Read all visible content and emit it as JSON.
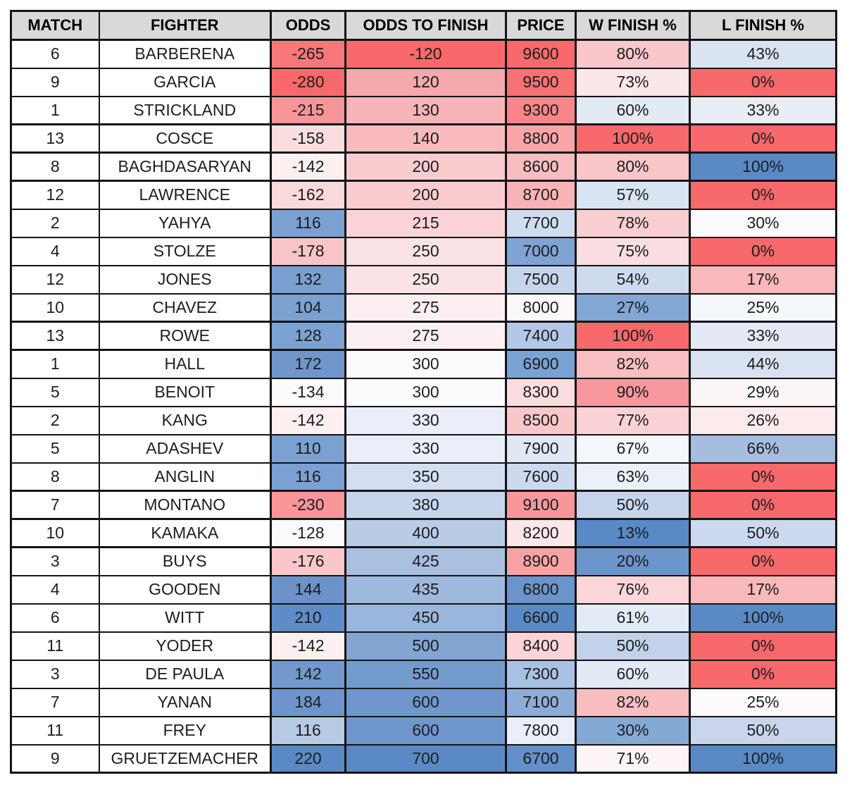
{
  "colors": {
    "header_bg": "#D9D9D9",
    "border": "#141414",
    "text": "#1D1D1D",
    "scale_red": "#F8696B",
    "scale_mid": "#FCFCFF",
    "scale_blue": "#5A8AC6"
  },
  "table": {
    "columns": [
      "MATCH",
      "FIGHTER",
      "ODDS",
      "ODDS TO FINISH",
      "PRICE",
      "W FINISH %",
      "L FINISH %"
    ],
    "rows": [
      {
        "match": "6",
        "fighter": "BARBERENA",
        "odds": "-265",
        "odds_to_finish": "-120",
        "price": "9600",
        "w_finish": "80%",
        "l_finish": "43%",
        "thick_bottom": false,
        "colors": {
          "odds": "#F87779",
          "odds_to_finish": "#F8696B",
          "price": "#F8696B",
          "w_finish": "#F9C6C9",
          "l_finish": "#D9E3F2"
        }
      },
      {
        "match": "9",
        "fighter": "GARCIA",
        "odds": "-280",
        "odds_to_finish": "120",
        "price": "9500",
        "w_finish": "73%",
        "l_finish": "0%",
        "thick_bottom": false,
        "colors": {
          "odds": "#F8696B",
          "odds_to_finish": "#F7A8AC",
          "price": "#F87173",
          "w_finish": "#FBE7EA",
          "l_finish": "#F8696B"
        }
      },
      {
        "match": "1",
        "fighter": "STRICKLAND",
        "odds": "-215",
        "odds_to_finish": "130",
        "price": "9300",
        "w_finish": "60%",
        "l_finish": "33%",
        "thick_bottom": true,
        "colors": {
          "odds": "#F89598",
          "odds_to_finish": "#F8B4B7",
          "price": "#F88689",
          "w_finish": "#E2EAF4",
          "l_finish": "#E8EDF6"
        }
      },
      {
        "match": "13",
        "fighter": "COSCE",
        "odds": "-158",
        "odds_to_finish": "140",
        "price": "8800",
        "w_finish": "100%",
        "l_finish": "0%",
        "thick_bottom": true,
        "colors": {
          "odds": "#FADEDF",
          "odds_to_finish": "#F8BABD",
          "price": "#F9A5A8",
          "w_finish": "#F8696B",
          "l_finish": "#F8696B"
        }
      },
      {
        "match": "8",
        "fighter": "BAGHDASARYAN",
        "odds": "-142",
        "odds_to_finish": "200",
        "price": "8600",
        "w_finish": "80%",
        "l_finish": "100%",
        "thick_bottom": true,
        "colors": {
          "odds": "#FCEFF0",
          "odds_to_finish": "#FACCCF",
          "price": "#F9BCBF",
          "w_finish": "#F9C6C9",
          "l_finish": "#5A8AC6"
        }
      },
      {
        "match": "12",
        "fighter": "LAWRENCE",
        "odds": "-162",
        "odds_to_finish": "200",
        "price": "8700",
        "w_finish": "57%",
        "l_finish": "0%",
        "thick_bottom": false,
        "colors": {
          "odds": "#FAD9DB",
          "odds_to_finish": "#FACCCF",
          "price": "#F9B3B6",
          "w_finish": "#D9E4F2",
          "l_finish": "#F8696B"
        }
      },
      {
        "match": "2",
        "fighter": "YAHYA",
        "odds": "116",
        "odds_to_finish": "215",
        "price": "7700",
        "w_finish": "78%",
        "l_finish": "30%",
        "thick_bottom": false,
        "colors": {
          "odds": "#7BA1D2",
          "odds_to_finish": "#FAD3D6",
          "price": "#D0DDF0",
          "w_finish": "#F9CED1",
          "l_finish": "#FBFBFD"
        }
      },
      {
        "match": "4",
        "fighter": "STOLZE",
        "odds": "-178",
        "odds_to_finish": "250",
        "price": "7000",
        "w_finish": "75%",
        "l_finish": "0%",
        "thick_bottom": false,
        "colors": {
          "odds": "#F9C4C7",
          "odds_to_finish": "#FBE3E5",
          "price": "#7FA3D2",
          "w_finish": "#FBDEE1",
          "l_finish": "#F8696B"
        }
      },
      {
        "match": "12",
        "fighter": "JONES",
        "odds": "132",
        "odds_to_finish": "250",
        "price": "7500",
        "w_finish": "54%",
        "l_finish": "17%",
        "thick_bottom": false,
        "colors": {
          "odds": "#7AA0D1",
          "odds_to_finish": "#FBE3E5",
          "price": "#C6D5EC",
          "w_finish": "#CEDBEF",
          "l_finish": "#F9B8BB"
        }
      },
      {
        "match": "10",
        "fighter": "CHAVEZ",
        "odds": "104",
        "odds_to_finish": "275",
        "price": "8000",
        "w_finish": "27%",
        "l_finish": "25%",
        "thick_bottom": true,
        "colors": {
          "odds": "#7CA0D0",
          "odds_to_finish": "#FCEFF1",
          "price": "#FCF7F9",
          "w_finish": "#83A7D4",
          "l_finish": "#F5F7FB"
        }
      },
      {
        "match": "13",
        "fighter": "ROWE",
        "odds": "128",
        "odds_to_finish": "275",
        "price": "7400",
        "w_finish": "100%",
        "l_finish": "33%",
        "thick_bottom": true,
        "colors": {
          "odds": "#7CA2D3",
          "odds_to_finish": "#FCEFF1",
          "price": "#B3C8E6",
          "w_finish": "#F8696B",
          "l_finish": "#E3EAF5"
        }
      },
      {
        "match": "1",
        "fighter": "HALL",
        "odds": "172",
        "odds_to_finish": "300",
        "price": "6900",
        "w_finish": "82%",
        "l_finish": "44%",
        "thick_bottom": false,
        "colors": {
          "odds": "#6E96CB",
          "odds_to_finish": "#FCFCFE",
          "price": "#7AA2D3",
          "w_finish": "#F9BEC1",
          "l_finish": "#D8E2F2"
        }
      },
      {
        "match": "5",
        "fighter": "BENOIT",
        "odds": "-134",
        "odds_to_finish": "300",
        "price": "8300",
        "w_finish": "90%",
        "l_finish": "29%",
        "thick_bottom": false,
        "colors": {
          "odds": "#FCFAFB",
          "odds_to_finish": "#FCFCFE",
          "price": "#FADCDE",
          "w_finish": "#F8989C",
          "l_finish": "#FCF6F8"
        }
      },
      {
        "match": "2",
        "fighter": "KANG",
        "odds": "-142",
        "odds_to_finish": "330",
        "price": "8500",
        "w_finish": "77%",
        "l_finish": "26%",
        "thick_bottom": false,
        "colors": {
          "odds": "#FCEFF0",
          "odds_to_finish": "#E9EEF8",
          "price": "#F9C7CA",
          "w_finish": "#FAD2D5",
          "l_finish": "#FBEBED"
        }
      },
      {
        "match": "5",
        "fighter": "ADASHEV",
        "odds": "110",
        "odds_to_finish": "330",
        "price": "7900",
        "w_finish": "67%",
        "l_finish": "66%",
        "thick_bottom": false,
        "colors": {
          "odds": "#7BA0D2",
          "odds_to_finish": "#E9EEF8",
          "price": "#E0E8F4",
          "w_finish": "#F3F6FB",
          "l_finish": "#A5BEDF"
        }
      },
      {
        "match": "8",
        "fighter": "ANGLIN",
        "odds": "116",
        "odds_to_finish": "350",
        "price": "7600",
        "w_finish": "63%",
        "l_finish": "0%",
        "thick_bottom": true,
        "colors": {
          "odds": "#7BA1D2",
          "odds_to_finish": "#D3DFF0",
          "price": "#CDD9EE",
          "w_finish": "#EBF0F9",
          "l_finish": "#F8696B"
        }
      },
      {
        "match": "7",
        "fighter": "MONTANO",
        "odds": "-230",
        "odds_to_finish": "380",
        "price": "9100",
        "w_finish": "50%",
        "l_finish": "0%",
        "thick_bottom": true,
        "colors": {
          "odds": "#F9969A",
          "odds_to_finish": "#C7D5EC",
          "price": "#F8979B",
          "w_finish": "#C6D4EB",
          "l_finish": "#F8696B"
        }
      },
      {
        "match": "10",
        "fighter": "KAMAKA",
        "odds": "-128",
        "odds_to_finish": "400",
        "price": "8200",
        "w_finish": "13%",
        "l_finish": "50%",
        "thick_bottom": true,
        "colors": {
          "odds": "#FBFBFE",
          "odds_to_finish": "#B9CCE6",
          "price": "#FBE7E9",
          "w_finish": "#5A8AC6",
          "l_finish": "#CCD9EE"
        }
      },
      {
        "match": "3",
        "fighter": "BUYS",
        "odds": "-176",
        "odds_to_finish": "425",
        "price": "8900",
        "w_finish": "20%",
        "l_finish": "0%",
        "thick_bottom": false,
        "colors": {
          "odds": "#F9C7CA",
          "odds_to_finish": "#A9C0E1",
          "price": "#F9A2A5",
          "w_finish": "#6C95CB",
          "l_finish": "#F8696B"
        }
      },
      {
        "match": "4",
        "fighter": "GOODEN",
        "odds": "144",
        "odds_to_finish": "435",
        "price": "6800",
        "w_finish": "76%",
        "l_finish": "17%",
        "thick_bottom": false,
        "colors": {
          "odds": "#6B93CA",
          "odds_to_finish": "#9FB9DD",
          "price": "#6B94CA",
          "w_finish": "#FAD6D9",
          "l_finish": "#F9B8BB"
        }
      },
      {
        "match": "6",
        "fighter": "WITT",
        "odds": "210",
        "odds_to_finish": "450",
        "price": "6600",
        "w_finish": "61%",
        "l_finish": "100%",
        "thick_bottom": false,
        "colors": {
          "odds": "#5E8CC8",
          "odds_to_finish": "#9BB6DC",
          "price": "#5A8AC6",
          "w_finish": "#E3EBF6",
          "l_finish": "#5A8AC6"
        }
      },
      {
        "match": "11",
        "fighter": "YODER",
        "odds": "-142",
        "odds_to_finish": "500",
        "price": "8400",
        "w_finish": "50%",
        "l_finish": "0%",
        "thick_bottom": false,
        "colors": {
          "odds": "#FCEFF0",
          "odds_to_finish": "#82A5D2",
          "price": "#FAD4D6",
          "w_finish": "#C2D2EA",
          "l_finish": "#F8696B"
        }
      },
      {
        "match": "3",
        "fighter": "DE PAULA",
        "odds": "142",
        "odds_to_finish": "550",
        "price": "7300",
        "w_finish": "60%",
        "l_finish": "0%",
        "thick_bottom": false,
        "colors": {
          "odds": "#7298CD",
          "odds_to_finish": "#749BCE",
          "price": "#A9C1E2",
          "w_finish": "#E2EAF4",
          "l_finish": "#F8696B"
        }
      },
      {
        "match": "7",
        "fighter": "YANAN",
        "odds": "184",
        "odds_to_finish": "600",
        "price": "7100",
        "w_finish": "82%",
        "l_finish": "25%",
        "thick_bottom": false,
        "colors": {
          "odds": "#6D95CC",
          "odds_to_finish": "#6F97CD",
          "price": "#8BADD8",
          "w_finish": "#F8BDC1",
          "l_finish": "#FCFAFC"
        }
      },
      {
        "match": "11",
        "fighter": "FREY",
        "odds": "116",
        "odds_to_finish": "600",
        "price": "7800",
        "w_finish": "30%",
        "l_finish": "50%",
        "thick_bottom": false,
        "colors": {
          "odds": "#B7CBE5",
          "odds_to_finish": "#6F97CD",
          "price": "#E9EEF8",
          "w_finish": "#85A9D5",
          "l_finish": "#C8D5EA"
        }
      },
      {
        "match": "9",
        "fighter": "GRUETZEMACHER",
        "odds": "220",
        "odds_to_finish": "700",
        "price": "6700",
        "w_finish": "71%",
        "l_finish": "100%",
        "thick_bottom": false,
        "colors": {
          "odds": "#5A8AC6",
          "odds_to_finish": "#5A8AC6",
          "price": "#6390C9",
          "w_finish": "#FCF4F5",
          "l_finish": "#5A8AC6"
        }
      }
    ]
  }
}
